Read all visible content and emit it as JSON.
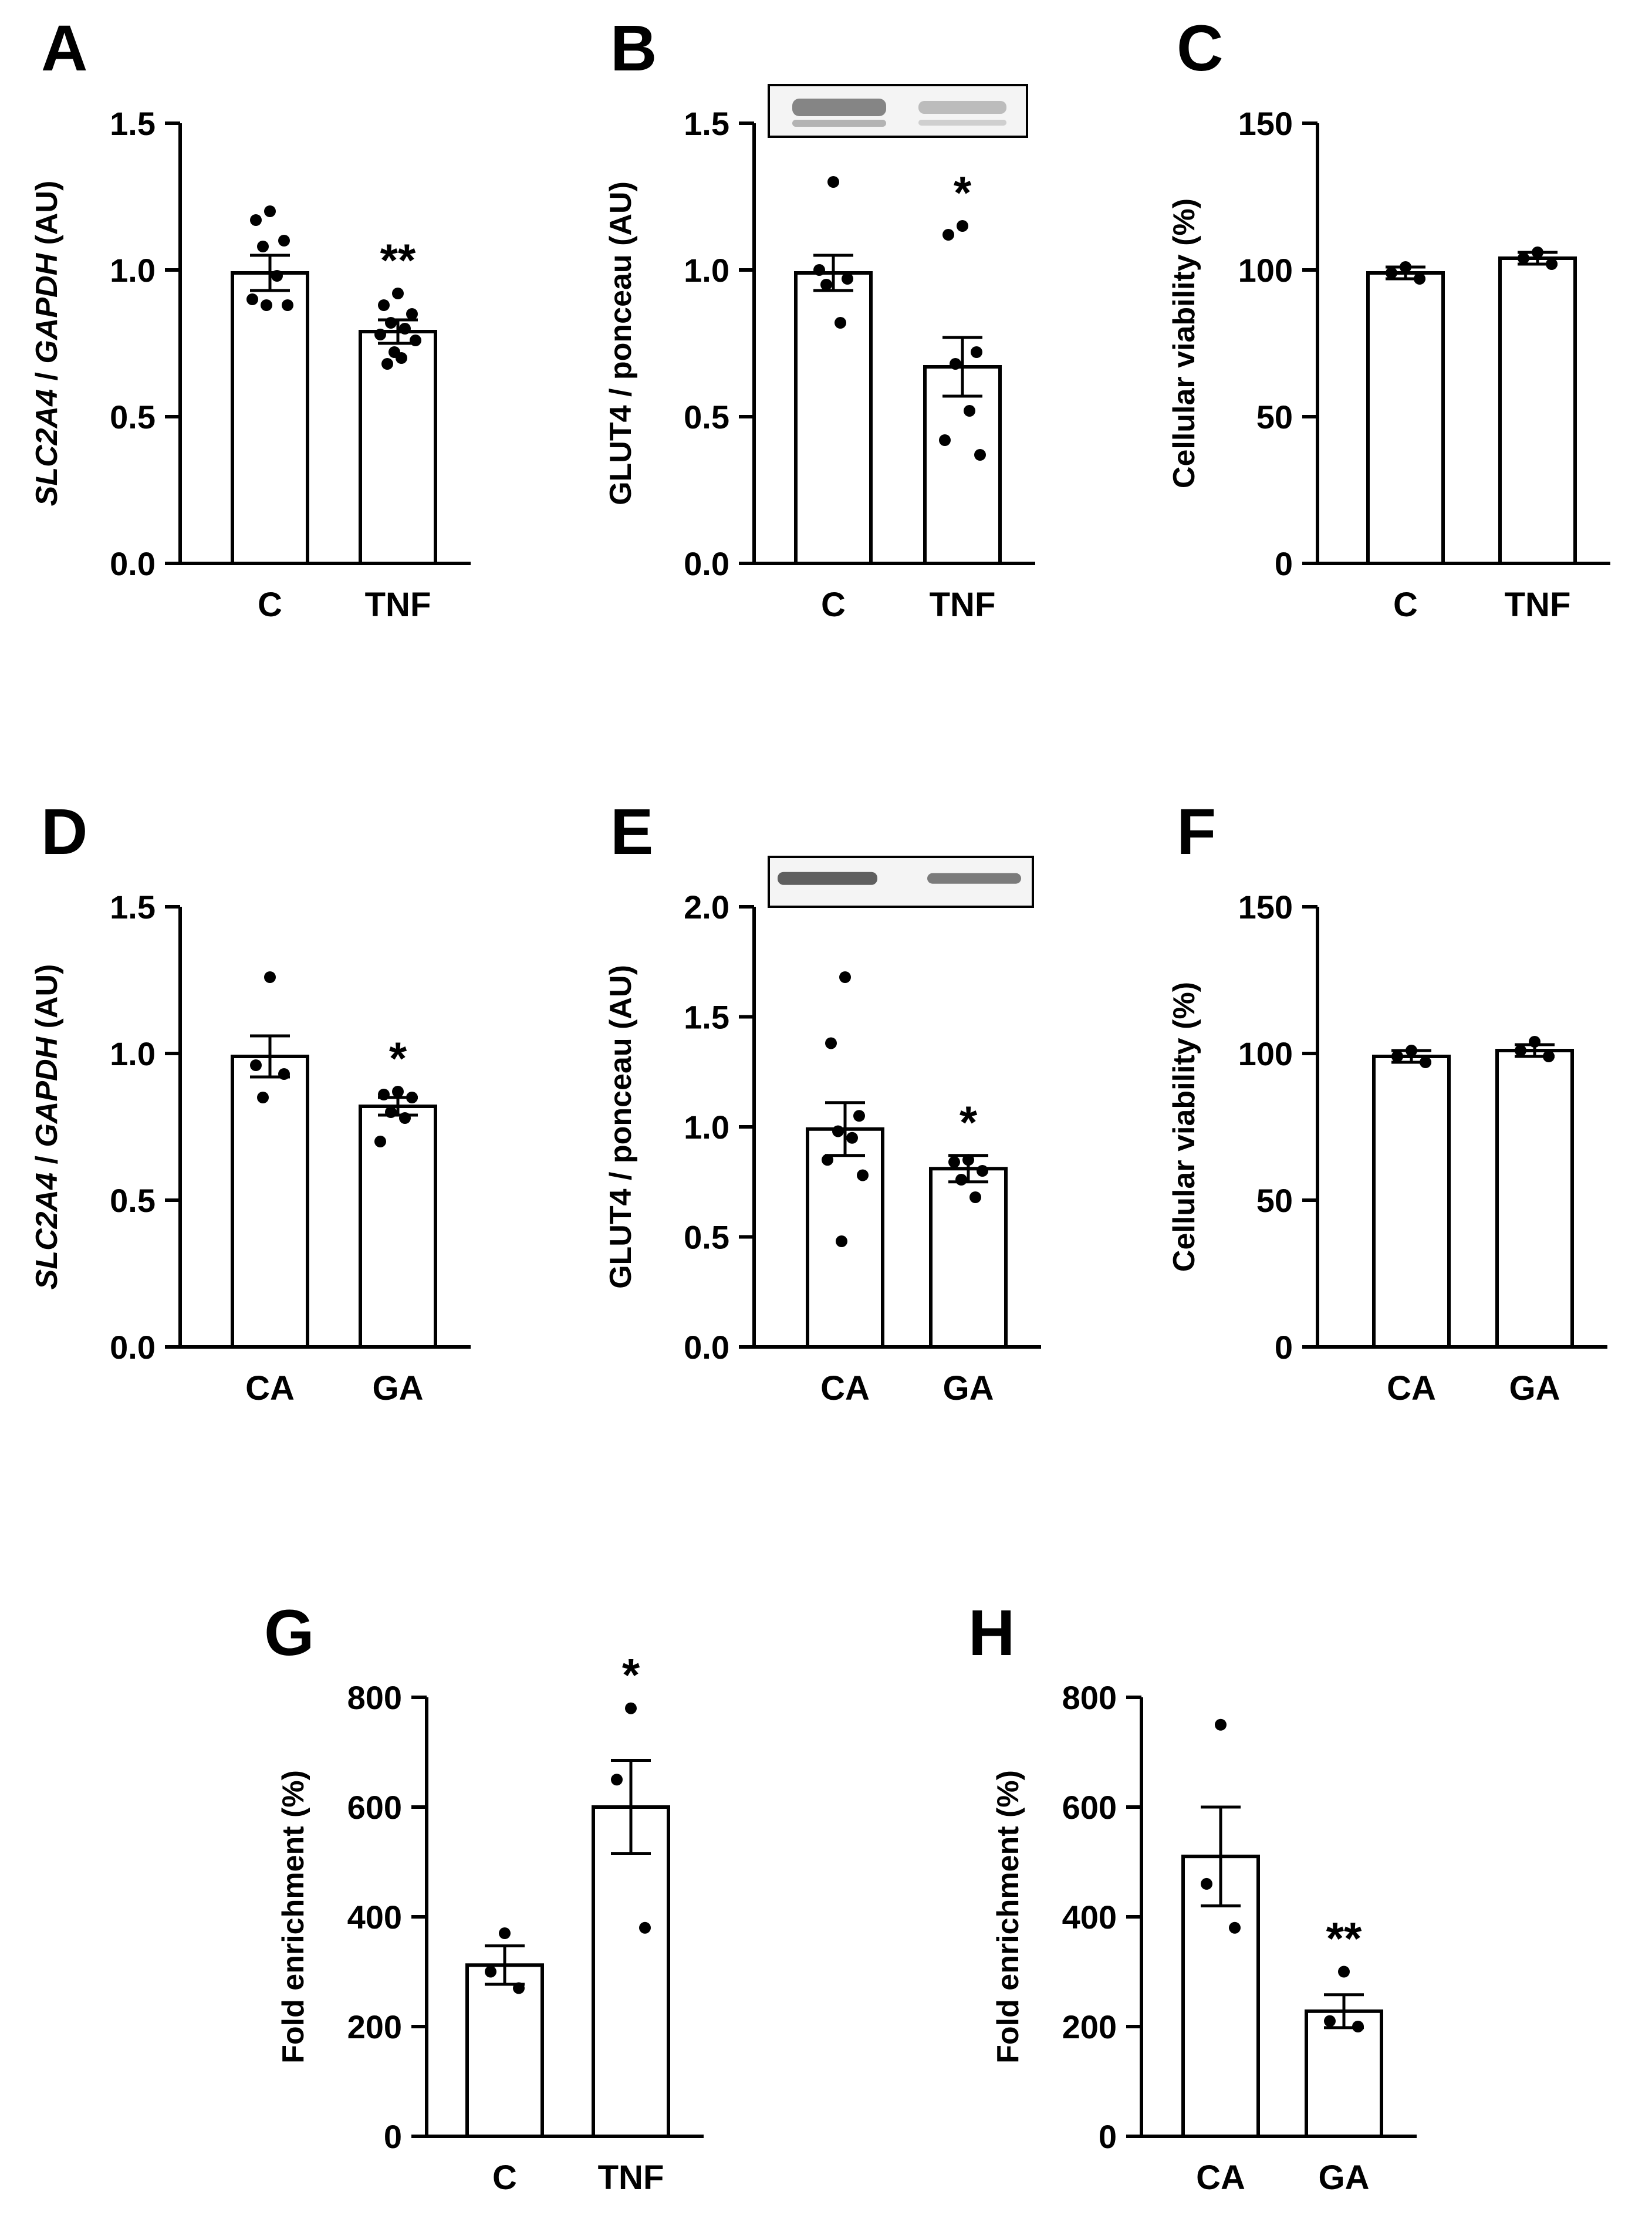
{
  "colors": {
    "ink": "#000000",
    "bar_fill": "#ffffff",
    "background": "#ffffff",
    "blot_band": "#3a3a3a"
  },
  "chart_data": [
    {
      "id": "A",
      "type": "bar",
      "panel": "A",
      "ylabel": {
        "parts": [
          {
            "text": "SLC2A4",
            "italic": true
          },
          {
            "text": " / ",
            "italic": false
          },
          {
            "text": "GAPDH",
            "italic": true
          },
          {
            "text": " (AU)",
            "italic": false
          }
        ]
      },
      "ylim": [
        0,
        1.5
      ],
      "yticks": [
        "0.0",
        "0.5",
        "1.0",
        "1.5"
      ],
      "ytick_values": [
        0,
        0.5,
        1.0,
        1.5
      ],
      "categories": [
        "C",
        "TNF"
      ],
      "values": [
        0.99,
        0.79
      ],
      "sem": [
        0.06,
        0.04
      ],
      "points": [
        [
          1.2,
          1.17,
          1.1,
          1.08,
          0.98,
          0.9,
          0.88,
          0.88
        ],
        [
          0.92,
          0.88,
          0.85,
          0.82,
          0.8,
          0.78,
          0.76,
          0.72,
          0.7,
          0.68
        ]
      ],
      "significance": [
        "",
        "**"
      ],
      "blot": null
    },
    {
      "id": "B",
      "type": "bar",
      "panel": "B",
      "ylabel": {
        "parts": [
          {
            "text": "GLUT4 / ponceau (AU)",
            "italic": false
          }
        ]
      },
      "ylim": [
        0,
        1.5
      ],
      "yticks": [
        "0.0",
        "0.5",
        "1.0",
        "1.5"
      ],
      "ytick_values": [
        0,
        0.5,
        1.0,
        1.5
      ],
      "categories": [
        "C",
        "TNF"
      ],
      "values": [
        0.99,
        0.67
      ],
      "sem": [
        0.06,
        0.1
      ],
      "points": [
        [
          1.3,
          1.0,
          0.97,
          0.95,
          0.82
        ],
        [
          1.15,
          1.12,
          0.72,
          0.68,
          0.52,
          0.42,
          0.37
        ]
      ],
      "significance": [
        "",
        "*"
      ],
      "blot": "GLUT4 western blot"
    },
    {
      "id": "C",
      "type": "bar",
      "panel": "C",
      "ylabel": {
        "parts": [
          {
            "text": "Cellular viability (%)",
            "italic": false
          }
        ]
      },
      "ylim": [
        0,
        150
      ],
      "yticks": [
        "0",
        "50",
        "100",
        "150"
      ],
      "ytick_values": [
        0,
        50,
        100,
        150
      ],
      "categories": [
        "C",
        "TNF"
      ],
      "values": [
        99,
        104
      ],
      "sem": [
        2,
        2
      ],
      "points": [
        [
          101,
          99,
          97
        ],
        [
          106,
          104,
          102
        ]
      ],
      "significance": [
        "",
        ""
      ],
      "blot": null
    },
    {
      "id": "D",
      "type": "bar",
      "panel": "D",
      "ylabel": {
        "parts": [
          {
            "text": "SLC2A4",
            "italic": true
          },
          {
            "text": " / ",
            "italic": false
          },
          {
            "text": "GAPDH",
            "italic": true
          },
          {
            "text": " (AU)",
            "italic": false
          }
        ]
      },
      "ylim": [
        0,
        1.5
      ],
      "yticks": [
        "0.0",
        "0.5",
        "1.0",
        "1.5"
      ],
      "ytick_values": [
        0,
        0.5,
        1.0,
        1.5
      ],
      "categories": [
        "CA",
        "GA"
      ],
      "values": [
        0.99,
        0.82
      ],
      "sem": [
        0.07,
        0.03
      ],
      "points": [
        [
          1.26,
          0.96,
          0.93,
          0.85
        ],
        [
          0.87,
          0.86,
          0.85,
          0.8,
          0.78,
          0.7
        ]
      ],
      "significance": [
        "",
        "*"
      ],
      "blot": null
    },
    {
      "id": "E",
      "type": "bar",
      "panel": "E",
      "ylabel": {
        "parts": [
          {
            "text": "GLUT4 / ponceau (AU)",
            "italic": false
          }
        ]
      },
      "ylim": [
        0,
        2.0
      ],
      "yticks": [
        "0.0",
        "0.5",
        "1.0",
        "1.5",
        "2.0"
      ],
      "ytick_values": [
        0,
        0.5,
        1.0,
        1.5,
        2.0
      ],
      "categories": [
        "CA",
        "GA"
      ],
      "values": [
        0.99,
        0.81
      ],
      "sem": [
        0.12,
        0.06
      ],
      "points": [
        [
          1.68,
          1.38,
          1.05,
          0.98,
          0.95,
          0.85,
          0.78,
          0.48
        ],
        [
          0.85,
          0.84,
          0.8,
          0.76,
          0.68
        ]
      ],
      "significance": [
        "",
        "*"
      ],
      "blot": "GLUT4 western blot"
    },
    {
      "id": "F",
      "type": "bar",
      "panel": "F",
      "ylabel": {
        "parts": [
          {
            "text": "Cellular viability (%)",
            "italic": false
          }
        ]
      },
      "ylim": [
        0,
        150
      ],
      "yticks": [
        "0",
        "50",
        "100",
        "150"
      ],
      "ytick_values": [
        0,
        50,
        100,
        150
      ],
      "categories": [
        "CA",
        "GA"
      ],
      "values": [
        99,
        101
      ],
      "sem": [
        2,
        2
      ],
      "points": [
        [
          101,
          99,
          97
        ],
        [
          104,
          101,
          99
        ]
      ],
      "significance": [
        "",
        ""
      ],
      "blot": null
    },
    {
      "id": "G",
      "type": "bar",
      "panel": "G",
      "ylabel": {
        "parts": [
          {
            "text": "Fold enrichment (%)",
            "italic": false
          }
        ]
      },
      "ylim": [
        0,
        800
      ],
      "yticks": [
        "0",
        "200",
        "400",
        "600",
        "800"
      ],
      "ytick_values": [
        0,
        200,
        400,
        600,
        800
      ],
      "categories": [
        "C",
        "TNF"
      ],
      "values": [
        312,
        600
      ],
      "sem": [
        35,
        85
      ],
      "points": [
        [
          370,
          300,
          270
        ],
        [
          780,
          650,
          380
        ]
      ],
      "significance": [
        "",
        "*"
      ],
      "blot": null
    },
    {
      "id": "H",
      "type": "bar",
      "panel": "H",
      "ylabel": {
        "parts": [
          {
            "text": "Fold enrichment (%)",
            "italic": false
          }
        ]
      },
      "ylim": [
        0,
        800
      ],
      "yticks": [
        "0",
        "200",
        "400",
        "600",
        "800"
      ],
      "ytick_values": [
        0,
        200,
        400,
        600,
        800
      ],
      "categories": [
        "CA",
        "GA"
      ],
      "values": [
        510,
        228
      ],
      "sem": [
        90,
        30
      ],
      "points": [
        [
          750,
          460,
          380
        ],
        [
          300,
          210,
          200
        ]
      ],
      "significance": [
        "",
        "**"
      ],
      "blot": null
    }
  ]
}
